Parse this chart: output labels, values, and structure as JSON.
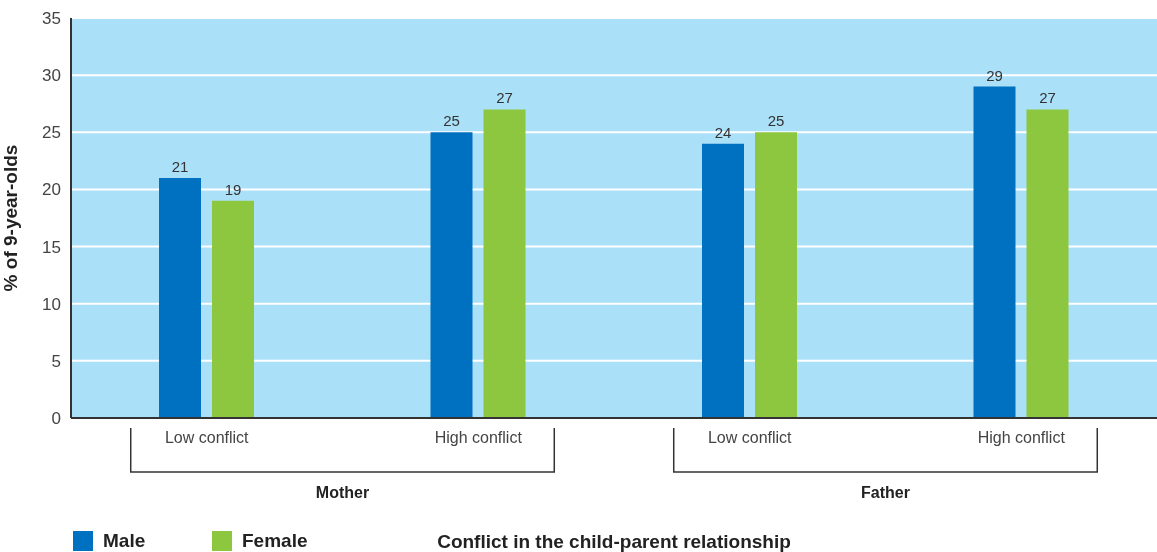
{
  "chart_data": {
    "type": "bar",
    "categories": [
      "Low conflict",
      "High conflict",
      "Low conflict",
      "High conflict"
    ],
    "series": [
      {
        "name": "Male",
        "color": "#0070c0",
        "values": [
          21,
          25,
          24,
          29
        ]
      },
      {
        "name": "Female",
        "color": "#8dc63f",
        "values": [
          19,
          27,
          25,
          27
        ]
      }
    ],
    "ylabel": "% of 9-year-olds",
    "xlabel": "Conflict in the child-parent relationship",
    "annotations": [
      "Mother",
      "Father"
    ],
    "ylim": [
      0,
      35
    ],
    "yticks": [
      0,
      5,
      10,
      15,
      20,
      25,
      30,
      35
    ],
    "grid": "y",
    "legend": "bottom left",
    "data_labels": true
  }
}
